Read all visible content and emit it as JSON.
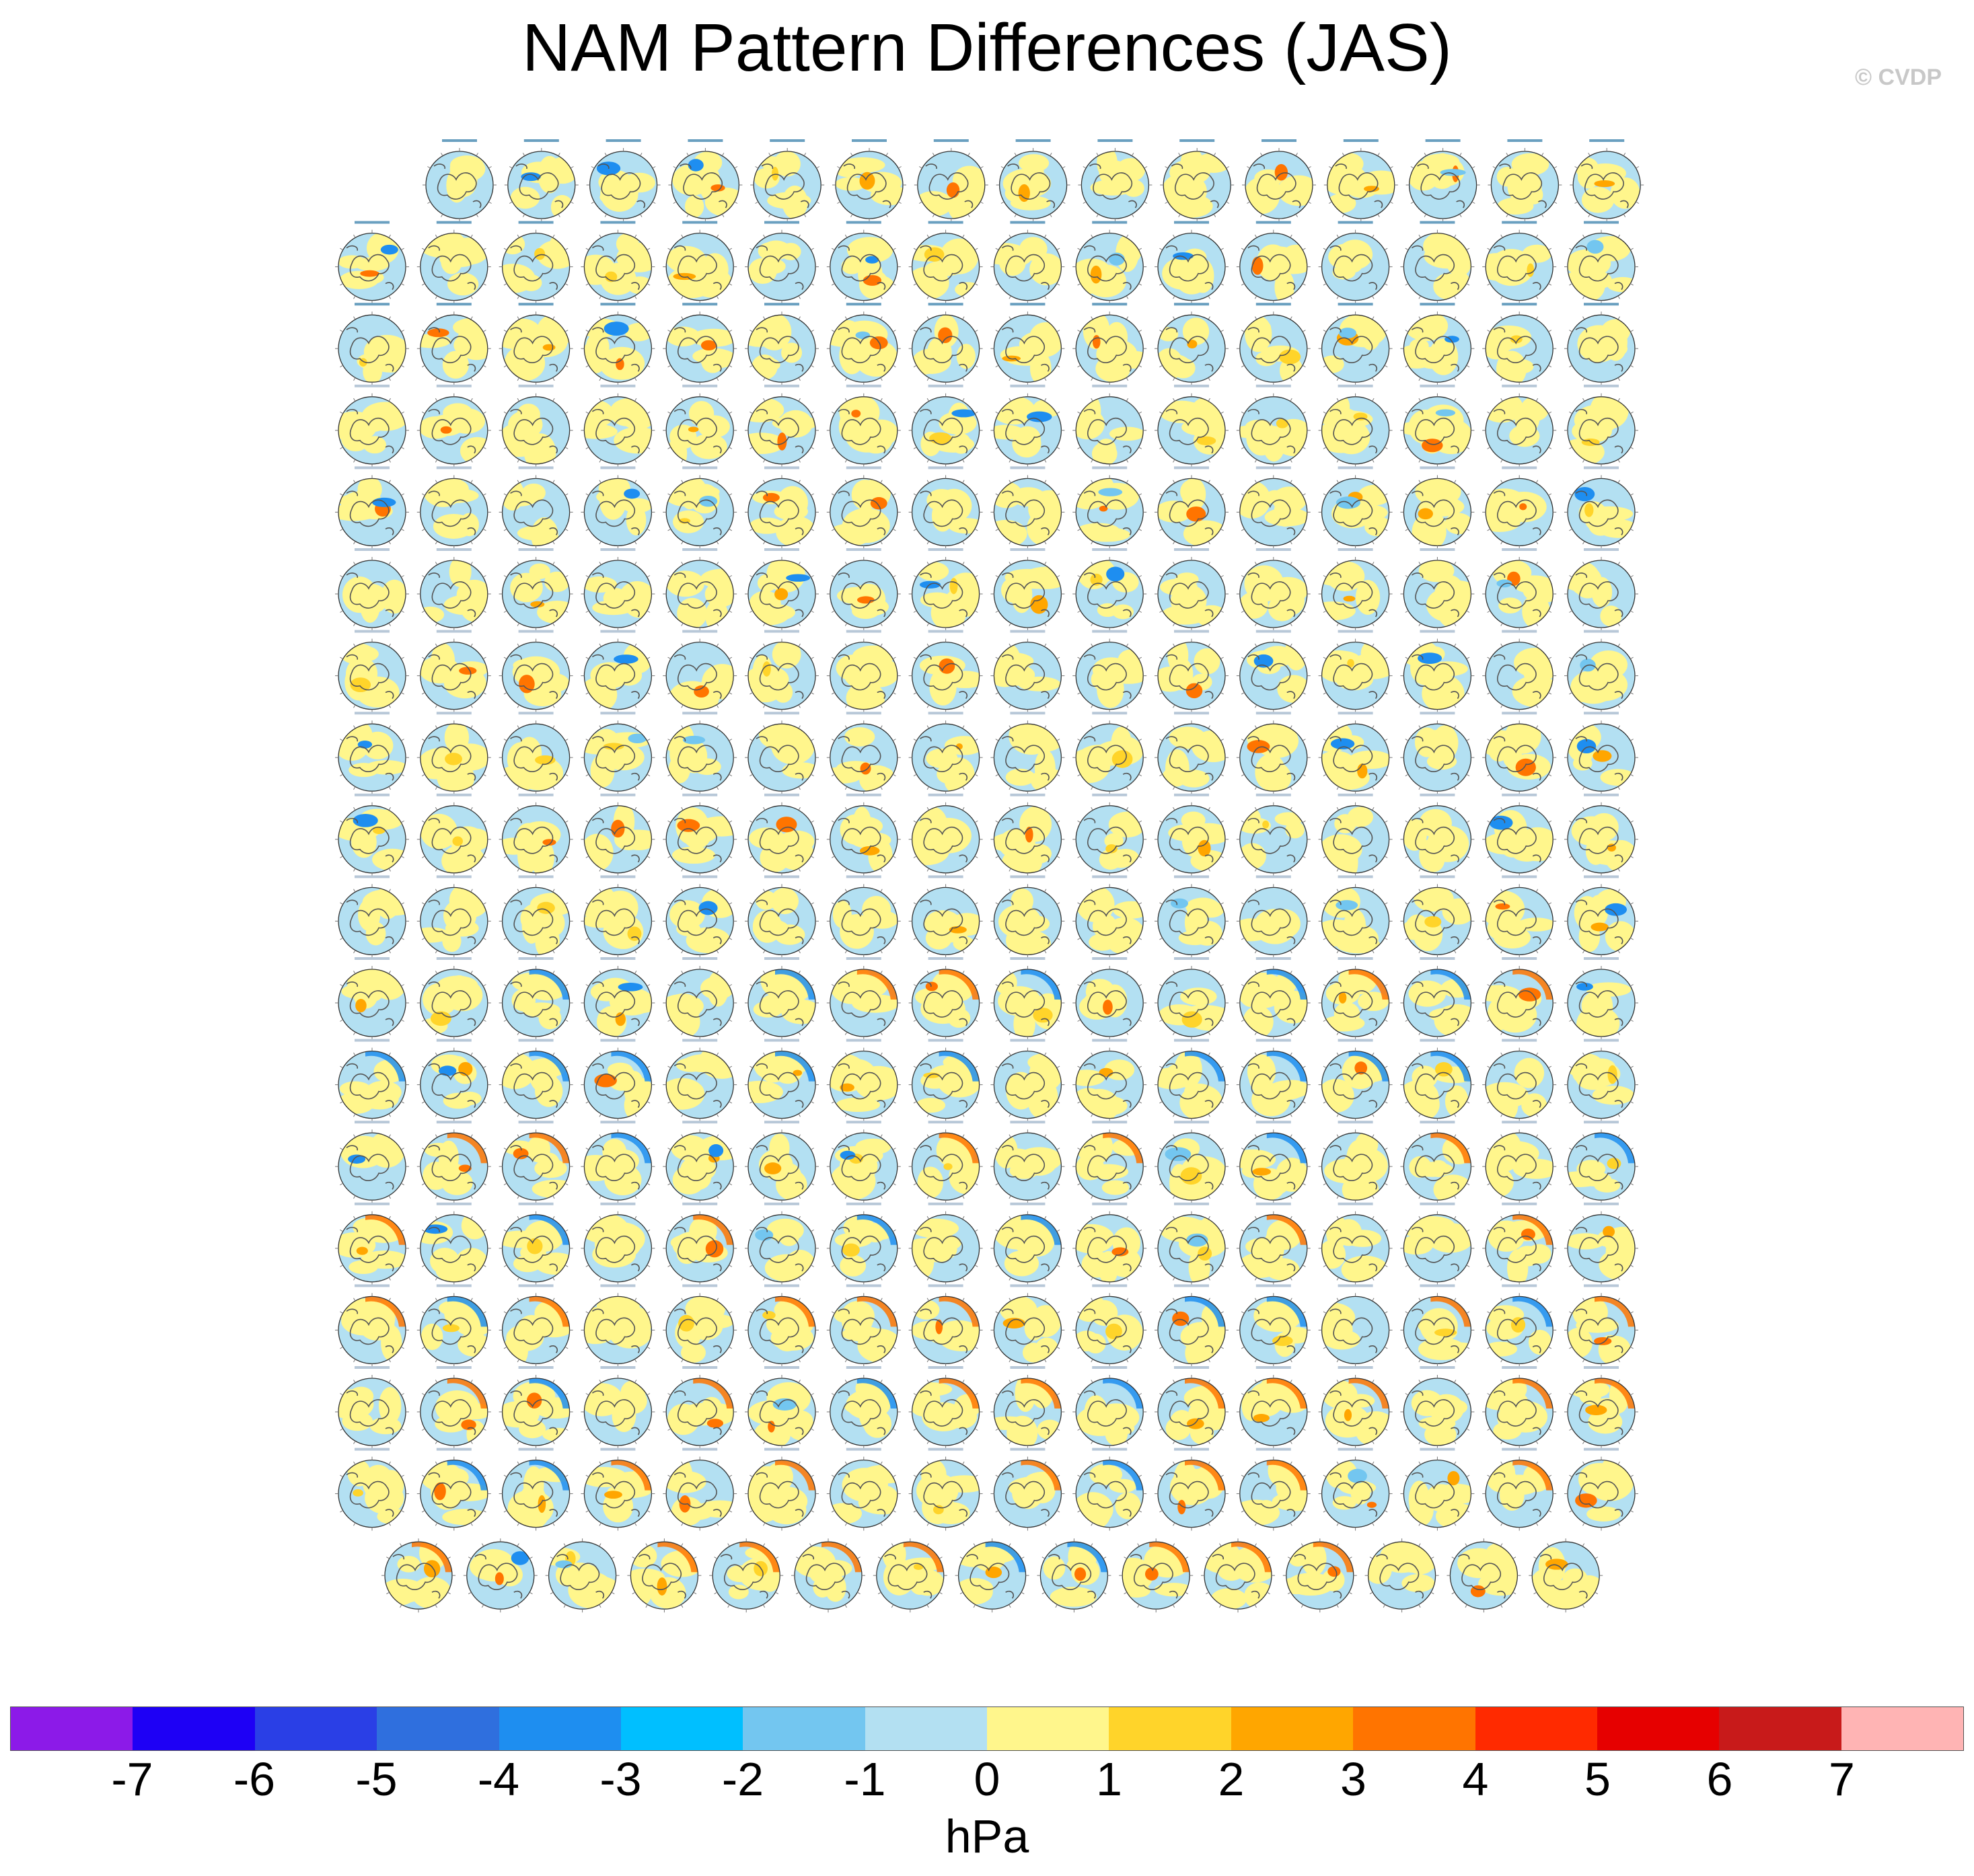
{
  "title": "NAM Pattern Differences (JAS)",
  "copyright": "© CVDP",
  "colorbar": {
    "units": "hPa",
    "tick_labels": [
      "-7",
      "-6",
      "-5",
      "-4",
      "-3",
      "-2",
      "-1",
      "0",
      "1",
      "2",
      "3",
      "4",
      "5",
      "6",
      "7"
    ],
    "colors": [
      "#8c1ae8",
      "#1e00f5",
      "#2a3fe6",
      "#2f6fde",
      "#1e8ef0",
      "#00bfff",
      "#73c6f0",
      "#b3e0f2",
      "#fff68c",
      "#ffd42a",
      "#ffa600",
      "#ff7400",
      "#ff2a00",
      "#e60000",
      "#c81a1a",
      "#ffb4b4"
    ]
  },
  "panel_grid": {
    "row_counts": [
      15,
      16,
      16,
      16,
      16,
      16,
      16,
      16,
      16,
      16,
      16,
      16,
      16,
      16,
      16,
      16,
      16,
      15
    ],
    "panel_icon": "polar-stereographic-map",
    "fills": [
      "#b3e0f2",
      "#fff68c"
    ]
  }
}
